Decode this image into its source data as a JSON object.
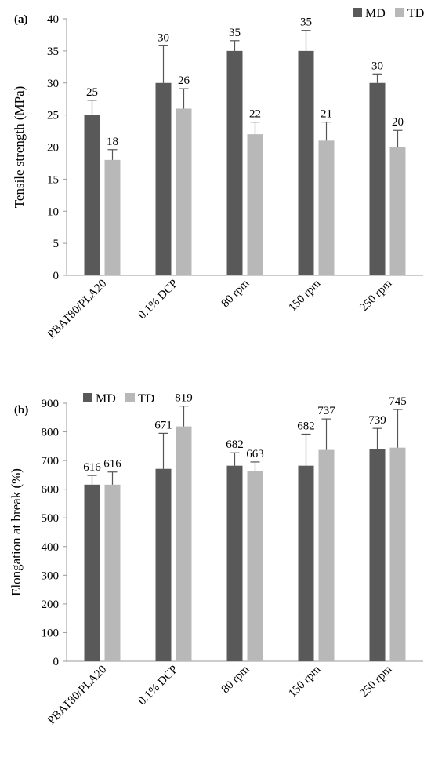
{
  "chart_data": [
    {
      "type": "bar",
      "panel_label": "(a)",
      "categories": [
        "PBAT80/PLA20",
        "0.1% DCP",
        "80 rpm",
        "150 rpm",
        "250 rpm"
      ],
      "series": [
        {
          "name": "MD",
          "color": "#595959",
          "values": [
            25,
            30,
            35,
            35,
            30
          ],
          "error_top": [
            27.3,
            35.8,
            36.6,
            38.2,
            31.4
          ],
          "labels": [
            "25",
            "30",
            "35",
            "35",
            "30"
          ]
        },
        {
          "name": "TD",
          "color": "#b8b8b8",
          "values": [
            18,
            26,
            22,
            21,
            20
          ],
          "error_top": [
            19.6,
            29.1,
            23.9,
            23.9,
            22.6
          ],
          "labels": [
            "18",
            "26",
            "22",
            "21",
            "20"
          ]
        }
      ],
      "ylabel": "Tensile strength (MPa)",
      "ylim": [
        0,
        40
      ],
      "yticks": [
        "0",
        "5",
        "10",
        "15",
        "20",
        "25",
        "30",
        "35",
        "40"
      ],
      "legend": "top-right",
      "grid": false
    },
    {
      "type": "bar",
      "panel_label": "(b)",
      "categories": [
        "PBAT80/PLA20",
        "0.1% DCP",
        "80 rpm",
        "150 rpm",
        "250 rpm"
      ],
      "series": [
        {
          "name": "MD",
          "color": "#595959",
          "values": [
            616,
            671,
            682,
            682,
            739
          ],
          "error_top": [
            648,
            795,
            727,
            792,
            812
          ],
          "labels": [
            "616",
            "671",
            "682",
            "682",
            "739"
          ]
        },
        {
          "name": "TD",
          "color": "#b8b8b8",
          "values": [
            616,
            819,
            663,
            737,
            745
          ],
          "error_top": [
            660,
            890,
            695,
            845,
            878
          ],
          "labels": [
            "616",
            "819",
            "663",
            "737",
            "745"
          ]
        }
      ],
      "ylabel": "Elongation at break (%)",
      "ylim": [
        0,
        900
      ],
      "yticks": [
        "0",
        "100",
        "200",
        "300",
        "400",
        "500",
        "600",
        "700",
        "800",
        "900"
      ],
      "legend": "top-left",
      "grid": false
    }
  ]
}
